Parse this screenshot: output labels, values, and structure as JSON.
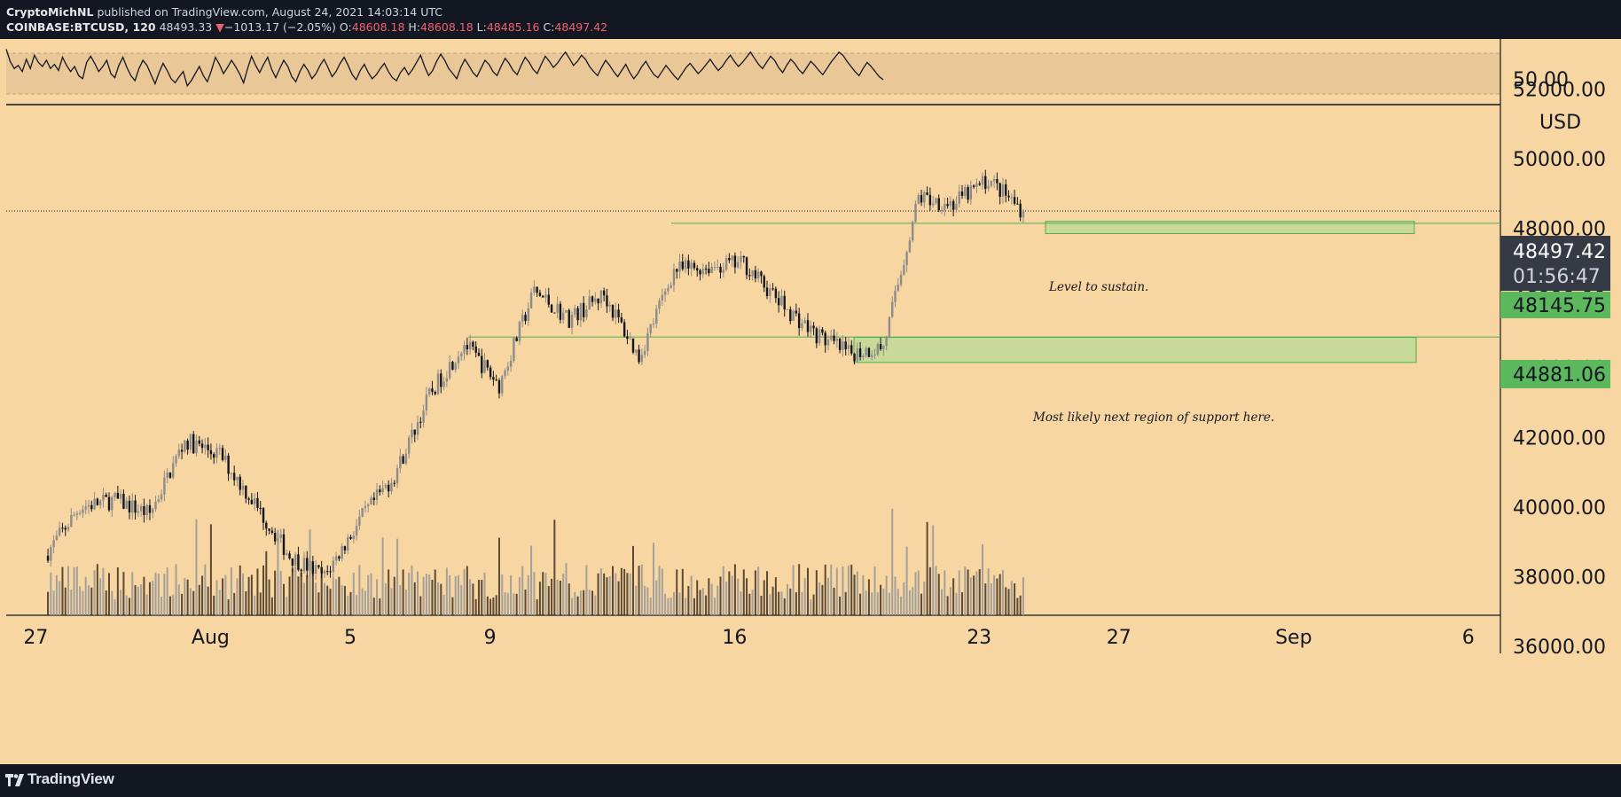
{
  "header": {
    "author": "CryptoMichNL",
    "published_text": " published on TradingView.com, August 24, 2021 14:03:14 UTC",
    "symbol": "COINBASE:BTCUSD, 120",
    "last": "48493.33",
    "change_arrow": "▼",
    "change": "−1013.17 (−2.05%)",
    "o_label": "O:",
    "o_value": "48608.18",
    "h_label": "H:",
    "h_value": "48608.18",
    "l_label": "L:",
    "l_value": "48485.16",
    "c_label": "C:",
    "c_value": "48497.42"
  },
  "footer": {
    "brand": "TradingView"
  },
  "colors": {
    "background": "#f8d6a1",
    "frame": "#131722",
    "up_candle": "#8c8c8c",
    "down_candle": "#131722",
    "zone_fill": "#c9d99a",
    "zone_border": "#4caf50",
    "price_tag_current": "#363a45",
    "price_tag_level": "#5cb85c",
    "rsi_band": "#e9c797"
  },
  "annotations": {
    "level_to_sustain": "Level to sustain.",
    "next_support": "Most likely next region of support here."
  },
  "price_labels": {
    "current_price": "48497.42",
    "countdown": "01:56:47",
    "level_1": "48145.75",
    "level_2": "44881.06",
    "currency": "USD"
  },
  "chart_data": [
    {
      "type": "line",
      "title": "",
      "indicator": "RSI",
      "y_ticks": [
        "50.00"
      ],
      "band": [
        30,
        70
      ],
      "ylim": [
        20,
        85
      ],
      "values": [
        74,
        62,
        55,
        58,
        52,
        64,
        55,
        68,
        61,
        57,
        63,
        55,
        59,
        53,
        66,
        58,
        52,
        57,
        48,
        45,
        61,
        67,
        60,
        52,
        57,
        63,
        50,
        46,
        58,
        66,
        56,
        48,
        43,
        55,
        63,
        58,
        49,
        40,
        51,
        60,
        53,
        45,
        41,
        47,
        52,
        38,
        43,
        50,
        57,
        48,
        42,
        53,
        66,
        59,
        50,
        56,
        63,
        57,
        50,
        41,
        55,
        67,
        58,
        51,
        59,
        66,
        54,
        46,
        55,
        63,
        57,
        47,
        42,
        52,
        59,
        53,
        45,
        50,
        58,
        64,
        56,
        47,
        52,
        60,
        66,
        58,
        49,
        44,
        53,
        59,
        51,
        45,
        49,
        55,
        60,
        52,
        46,
        43,
        51,
        56,
        49,
        54,
        61,
        68,
        57,
        48,
        53,
        62,
        69,
        63,
        55,
        50,
        45,
        56,
        64,
        58,
        51,
        47,
        55,
        63,
        59,
        52,
        48,
        57,
        65,
        60,
        53,
        49,
        58,
        66,
        61,
        54,
        50,
        59,
        67,
        62,
        56,
        60,
        66,
        71,
        65,
        58,
        62,
        68,
        64,
        57,
        52,
        48,
        56,
        63,
        58,
        52,
        47,
        53,
        59,
        51,
        45,
        50,
        57,
        62,
        55,
        49,
        46,
        52,
        58,
        53,
        48,
        44,
        50,
        56,
        60,
        55,
        50,
        54,
        59,
        64,
        58,
        53,
        57,
        63,
        68,
        62,
        57,
        61,
        66,
        71,
        65,
        59,
        55,
        61,
        67,
        63,
        56,
        51,
        58,
        64,
        60,
        54,
        50,
        56,
        62,
        58,
        53,
        49,
        55,
        61,
        66,
        71,
        68,
        62,
        57,
        52,
        48,
        55,
        61,
        57,
        52,
        47,
        44
      ]
    },
    {
      "type": "candlestick",
      "title": "COINBASE:BTCUSD, 120",
      "ylabel": "USD",
      "ylim": [
        35000,
        52300
      ],
      "y_ticks": [
        "52000.00",
        "50000.00",
        "48000.00",
        "46000.00",
        "44000.00",
        "42000.00",
        "40000.00",
        "38000.00",
        "36000.00"
      ],
      "x_ticks": [
        "27",
        "Aug",
        "5",
        "9",
        "16",
        "23",
        "27",
        "Sep",
        "6"
      ],
      "anchors": [
        {
          "date": "Jul 27",
          "price": 38600
        },
        {
          "date": "Jul 28",
          "price": 40000
        },
        {
          "date": "Jul 29",
          "price": 40200
        },
        {
          "date": "Jul 30",
          "price": 39800
        },
        {
          "date": "Jul 31",
          "price": 41900
        },
        {
          "date": "Aug 1",
          "price": 41500
        },
        {
          "date": "Aug 2",
          "price": 40100
        },
        {
          "date": "Aug 3",
          "price": 38600
        },
        {
          "date": "Aug 4",
          "price": 38000
        },
        {
          "date": "Aug 5",
          "price": 39600
        },
        {
          "date": "Aug 6",
          "price": 40900
        },
        {
          "date": "Aug 7",
          "price": 43200
        },
        {
          "date": "Aug 8",
          "price": 44700
        },
        {
          "date": "Aug 9",
          "price": 43500
        },
        {
          "date": "Aug 10",
          "price": 46200
        },
        {
          "date": "Aug 11",
          "price": 45400
        },
        {
          "date": "Aug 12",
          "price": 46100
        },
        {
          "date": "Aug 13",
          "price": 44300
        },
        {
          "date": "Aug 14",
          "price": 46800
        },
        {
          "date": "Aug 15",
          "price": 46900
        },
        {
          "date": "Aug 16",
          "price": 47000
        },
        {
          "date": "Aug 17",
          "price": 45900
        },
        {
          "date": "Aug 18",
          "price": 45000
        },
        {
          "date": "Aug 19",
          "price": 44400
        },
        {
          "date": "Aug 20",
          "price": 44600
        },
        {
          "date": "Aug 21",
          "price": 48900
        },
        {
          "date": "Aug 22",
          "price": 48700
        },
        {
          "date": "Aug 23",
          "price": 49400
        },
        {
          "date": "Aug 24",
          "price": 48497
        }
      ],
      "levels": [
        {
          "value": 48497.42,
          "kind": "current"
        },
        {
          "value": 48145.75,
          "kind": "support"
        },
        {
          "value": 44881.06,
          "kind": "support"
        }
      ],
      "zones": [
        {
          "from_date": "Aug 20",
          "to_date": "Sep 5",
          "low": 47850,
          "high": 48200
        },
        {
          "from_date": "Aug 20",
          "to_date": "Sep 5",
          "low": 44150,
          "high": 44870
        }
      ]
    }
  ]
}
